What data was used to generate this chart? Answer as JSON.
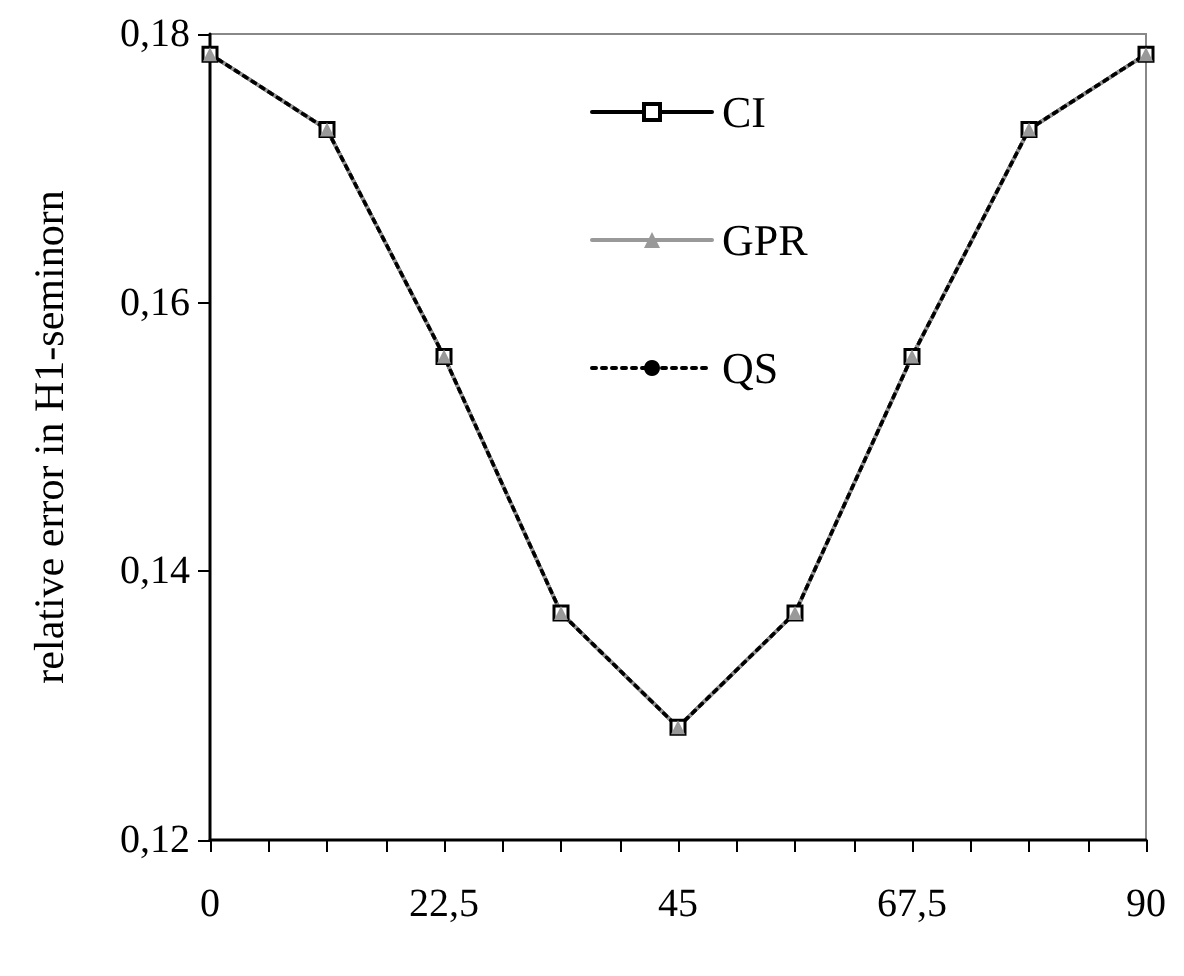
{
  "chart_data": {
    "type": "line",
    "ylabel": "relative error in H1-seminorn",
    "x": [
      0,
      11.25,
      22.5,
      33.75,
      45,
      56.25,
      67.5,
      78.75,
      90
    ],
    "series": [
      {
        "name": "CI",
        "color": "#000000",
        "marker": "square",
        "line_style": "solid",
        "values": [
          0.1785,
          0.1729,
          0.156,
          0.1369,
          0.1284,
          0.1369,
          0.156,
          0.1729,
          0.1785
        ]
      },
      {
        "name": "GPR",
        "color": "#999999",
        "marker": "triangle",
        "line_style": "solid",
        "values": [
          0.1785,
          0.1729,
          0.156,
          0.1369,
          0.1284,
          0.1369,
          0.156,
          0.1729,
          0.1785
        ]
      },
      {
        "name": "QS",
        "color": "#000000",
        "marker": "none",
        "line_style": "dotted",
        "values": [
          0.1785,
          0.1729,
          0.156,
          0.1369,
          0.1284,
          0.1369,
          0.156,
          0.1729,
          0.1785
        ]
      }
    ],
    "xlim": [
      0,
      90
    ],
    "xticks": [
      0,
      {
        "value": 5.625,
        "label": null
      },
      {
        "value": 11.25,
        "label": null
      },
      {
        "value": 16.875,
        "label": null
      },
      {
        "value": 22.5,
        "label": "22,5"
      },
      {
        "value": 28.125,
        "label": null
      },
      {
        "value": 33.75,
        "label": null
      },
      {
        "value": 39.375,
        "label": null
      },
      45,
      {
        "value": 50.625,
        "label": null
      },
      {
        "value": 56.25,
        "label": null
      },
      {
        "value": 61.875,
        "label": null
      },
      {
        "value": 67.5,
        "label": "67,5"
      },
      {
        "value": 73.125,
        "label": null
      },
      {
        "value": 78.75,
        "label": null
      },
      {
        "value": 84.375,
        "label": null
      },
      90
    ],
    "ylim": [
      0.12,
      0.18
    ],
    "yticks": [
      {
        "value": 0.12,
        "label": "0,12"
      },
      {
        "value": 0.14,
        "label": "0,14"
      },
      {
        "value": 0.16,
        "label": "0,16"
      },
      {
        "value": 0.18,
        "label": "0,18"
      }
    ],
    "grid": false,
    "legend": "top"
  }
}
